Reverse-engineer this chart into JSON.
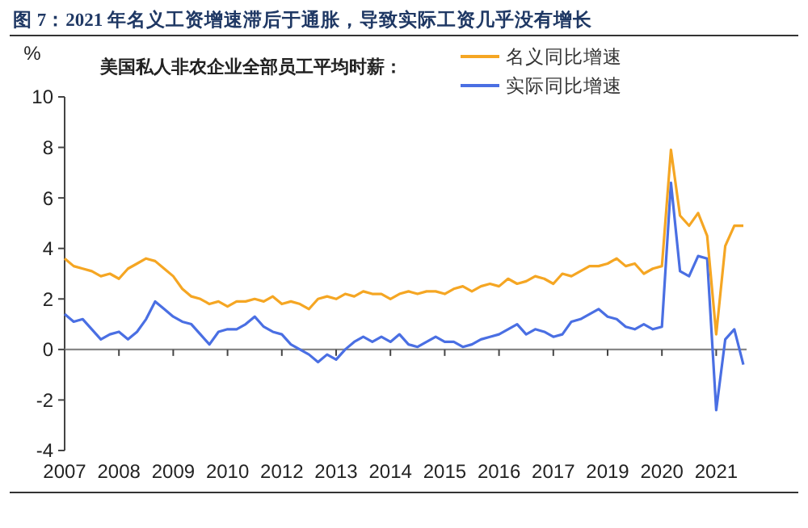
{
  "chart_data": {
    "type": "line",
    "title": "图 7：2021 年名义工资增速滞后于通胀，导致实际工资几乎没有增长",
    "subtitle": "美国私人非农企业全部员工平均时薪：",
    "ylabel": "%",
    "categories": [
      "2007",
      null,
      null,
      null,
      null,
      null,
      "2008",
      null,
      null,
      null,
      null,
      null,
      "2009",
      null,
      null,
      null,
      null,
      null,
      "2010",
      null,
      null,
      null,
      null,
      null,
      "2012",
      null,
      null,
      null,
      null,
      null,
      "2013",
      null,
      null,
      null,
      null,
      null,
      "2014",
      null,
      null,
      null,
      null,
      null,
      "2015",
      null,
      null,
      null,
      null,
      null,
      "2016",
      null,
      null,
      null,
      null,
      null,
      "2017",
      null,
      null,
      null,
      null,
      null,
      "2019",
      null,
      null,
      null,
      null,
      null,
      "2020",
      null,
      null,
      null,
      null,
      null,
      "2021",
      null,
      null,
      null
    ],
    "series": [
      {
        "name": "名义同比增速",
        "color": "#f5a623",
        "values": [
          3.6,
          3.3,
          3.2,
          3.1,
          2.9,
          3.0,
          2.8,
          3.2,
          3.4,
          3.6,
          3.5,
          3.2,
          2.9,
          2.4,
          2.1,
          2.0,
          1.8,
          1.9,
          1.7,
          1.9,
          1.9,
          2.0,
          1.9,
          2.1,
          1.8,
          1.9,
          1.8,
          1.6,
          2.0,
          2.1,
          2.0,
          2.2,
          2.1,
          2.3,
          2.2,
          2.2,
          2.0,
          2.2,
          2.3,
          2.2,
          2.3,
          2.3,
          2.2,
          2.4,
          2.5,
          2.3,
          2.5,
          2.6,
          2.5,
          2.8,
          2.6,
          2.7,
          2.9,
          2.8,
          2.6,
          3.0,
          2.9,
          3.1,
          3.3,
          3.3,
          3.4,
          3.6,
          3.3,
          3.4,
          3.0,
          3.2,
          3.3,
          7.9,
          5.3,
          4.9,
          5.4,
          4.5,
          0.6,
          4.1,
          4.9,
          4.9
        ]
      },
      {
        "name": "实际同比增速",
        "color": "#4a6fe3",
        "values": [
          1.4,
          1.1,
          1.2,
          0.8,
          0.4,
          0.6,
          0.7,
          0.4,
          0.7,
          1.2,
          1.9,
          1.6,
          1.3,
          1.1,
          1.0,
          0.6,
          0.2,
          0.7,
          0.8,
          0.8,
          1.0,
          1.3,
          0.9,
          0.7,
          0.6,
          0.2,
          0.0,
          -0.2,
          -0.5,
          -0.2,
          -0.4,
          0.0,
          0.3,
          0.5,
          0.3,
          0.5,
          0.3,
          0.6,
          0.2,
          0.1,
          0.3,
          0.5,
          0.3,
          0.3,
          0.1,
          0.2,
          0.4,
          0.5,
          0.6,
          0.8,
          1.0,
          0.6,
          0.8,
          0.7,
          0.5,
          0.6,
          1.1,
          1.2,
          1.4,
          1.6,
          1.3,
          1.2,
          0.9,
          0.8,
          1.0,
          0.8,
          0.9,
          6.6,
          3.1,
          2.9,
          3.7,
          3.6,
          -2.4,
          0.4,
          0.8,
          -0.6
        ]
      }
    ],
    "ylim": [
      -4,
      10
    ],
    "yticks": [
      -4,
      -2,
      0,
      2,
      4,
      6,
      8,
      10
    ],
    "ref_lines": [
      {
        "axis": "y",
        "value": 0,
        "color": "#888888"
      }
    ],
    "grid": false,
    "legend": "top right",
    "marker": "none",
    "line_style": "solid"
  }
}
